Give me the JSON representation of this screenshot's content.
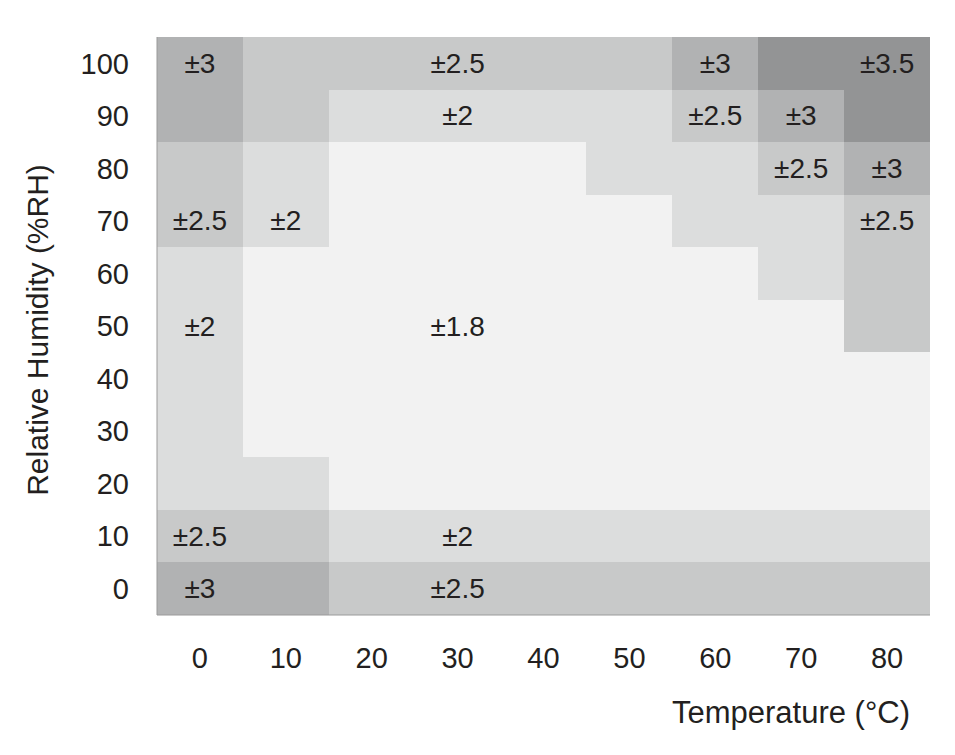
{
  "chart_data": {
    "type": "heatmap",
    "x_label": "Temperature (°C)",
    "y_label": "Relative Humidity (%RH)",
    "x": [
      0,
      10,
      20,
      30,
      40,
      50,
      60,
      70,
      80
    ],
    "y": [
      0,
      10,
      20,
      30,
      40,
      50,
      60,
      70,
      80,
      90,
      100
    ],
    "cells": [
      [
        3,
        3,
        2.5,
        2.5,
        2.5,
        2.5,
        2.5,
        2.5,
        2.5
      ],
      [
        2.5,
        2.5,
        2,
        2,
        2,
        2,
        2,
        2,
        2
      ],
      [
        2,
        2,
        1.8,
        1.8,
        1.8,
        1.8,
        1.8,
        1.8,
        1.8
      ],
      [
        2,
        1.8,
        1.8,
        1.8,
        1.8,
        1.8,
        1.8,
        1.8,
        1.8
      ],
      [
        2,
        1.8,
        1.8,
        1.8,
        1.8,
        1.8,
        1.8,
        1.8,
        1.8
      ],
      [
        2,
        1.8,
        1.8,
        1.8,
        1.8,
        1.8,
        1.8,
        1.8,
        2.5
      ],
      [
        2,
        1.8,
        1.8,
        1.8,
        1.8,
        1.8,
        1.8,
        2,
        2.5
      ],
      [
        2.5,
        2,
        1.8,
        1.8,
        1.8,
        1.8,
        2,
        2,
        2.5
      ],
      [
        2.5,
        2,
        1.8,
        1.8,
        1.8,
        2,
        2,
        2.5,
        3
      ],
      [
        3,
        2.5,
        2,
        2,
        2,
        2,
        2.5,
        3,
        3.5
      ],
      [
        3,
        2.5,
        2.5,
        2.5,
        2.5,
        2.5,
        3,
        3.5,
        3.5
      ]
    ],
    "levels": [
      1.8,
      2,
      2.5,
      3,
      3.5
    ],
    "colors": [
      "#f2f2f2",
      "#dcdddd",
      "#c8c9c9",
      "#b1b2b3",
      "#939495"
    ],
    "xlim": [
      -5,
      85
    ],
    "xticks": [
      0,
      10,
      20,
      30,
      40,
      50,
      60,
      70,
      80
    ],
    "ylim": [
      -5,
      105
    ],
    "yticks": [
      0,
      10,
      20,
      30,
      40,
      50,
      60,
      70,
      80,
      90,
      100
    ],
    "grid": false,
    "annotations": [
      {
        "x": 0,
        "y": 100,
        "text": "±3"
      },
      {
        "x": 30,
        "y": 100,
        "text": "±2.5"
      },
      {
        "x": 60,
        "y": 100,
        "text": "±3"
      },
      {
        "x": 80,
        "y": 100,
        "text": "±3.5"
      },
      {
        "x": 30,
        "y": 90,
        "text": "±2"
      },
      {
        "x": 60,
        "y": 90,
        "text": "±2.5"
      },
      {
        "x": 70,
        "y": 90,
        "text": "±3"
      },
      {
        "x": 70,
        "y": 80,
        "text": "±2.5"
      },
      {
        "x": 80,
        "y": 80,
        "text": "±3"
      },
      {
        "x": 0,
        "y": 70,
        "text": "±2.5"
      },
      {
        "x": 10,
        "y": 70,
        "text": "±2"
      },
      {
        "x": 80,
        "y": 70,
        "text": "±2.5"
      },
      {
        "x": 0,
        "y": 50,
        "text": "±2"
      },
      {
        "x": 30,
        "y": 50,
        "text": "±1.8"
      },
      {
        "x": 0,
        "y": 10,
        "text": "±2.5"
      },
      {
        "x": 30,
        "y": 10,
        "text": "±2"
      },
      {
        "x": 0,
        "y": 0,
        "text": "±3"
      },
      {
        "x": 30,
        "y": 0,
        "text": "±2.5"
      }
    ]
  }
}
